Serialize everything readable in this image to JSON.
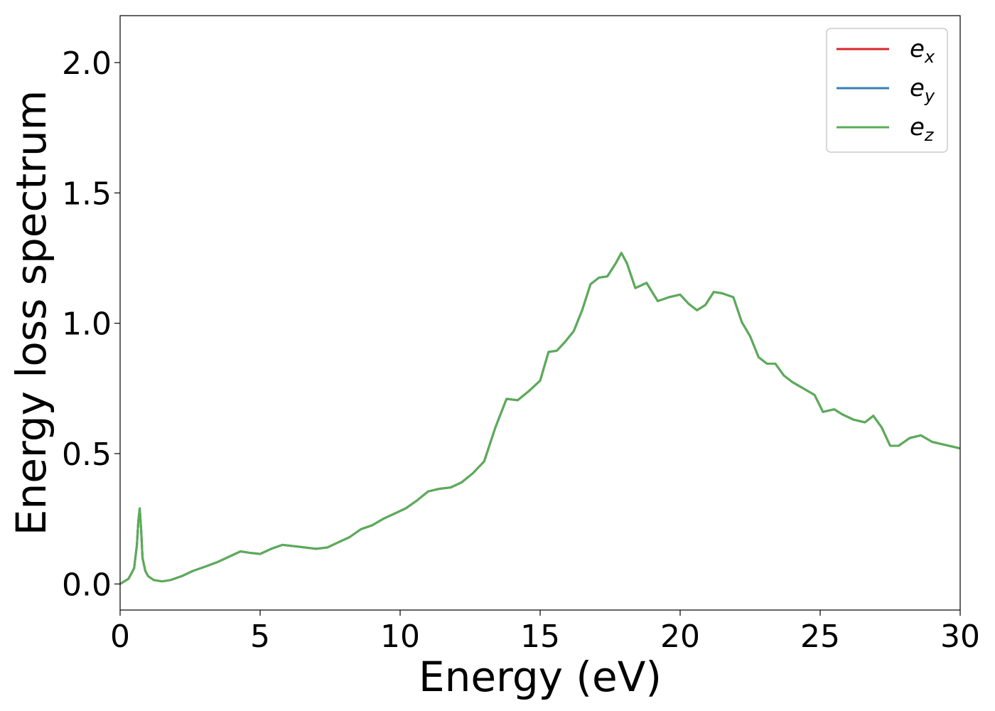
{
  "chart_data": {
    "type": "line",
    "xlabel": "Energy (eV)",
    "ylabel": "Energy loss spectrum",
    "xlim": [
      0,
      30
    ],
    "ylim": [
      -0.1,
      2.18
    ],
    "xticks": [
      0,
      5,
      10,
      15,
      20,
      25,
      30
    ],
    "xtick_labels": [
      "0",
      "5",
      "10",
      "15",
      "20",
      "25",
      "30"
    ],
    "yticks": [
      0.0,
      0.5,
      1.0,
      1.5,
      2.0
    ],
    "ytick_labels": [
      "0.0",
      "0.5",
      "1.0",
      "1.5",
      "2.0"
    ],
    "grid": false,
    "legend_position": "top-right",
    "series": [
      {
        "name": "e",
        "subscript": "x",
        "color": "#d62728"
      },
      {
        "name": "e",
        "subscript": "y",
        "color": "#3a7fb5"
      },
      {
        "name": "e",
        "subscript": "z",
        "color": "#5aad57"
      }
    ],
    "x": [
      0,
      0.3,
      0.5,
      0.6,
      0.65,
      0.7,
      0.75,
      0.8,
      0.9,
      1.0,
      1.2,
      1.5,
      1.8,
      2.2,
      2.6,
      3.0,
      3.5,
      4.0,
      4.3,
      4.6,
      5.0,
      5.4,
      5.8,
      6.2,
      6.6,
      7.0,
      7.4,
      7.8,
      8.2,
      8.6,
      9.0,
      9.4,
      9.8,
      10.2,
      10.6,
      11.0,
      11.4,
      11.8,
      12.2,
      12.6,
      13.0,
      13.4,
      13.8,
      14.2,
      14.6,
      15.0,
      15.3,
      15.6,
      15.9,
      16.2,
      16.5,
      16.8,
      17.1,
      17.4,
      17.7,
      17.9,
      18.1,
      18.4,
      18.8,
      19.2,
      19.6,
      20.0,
      20.3,
      20.6,
      20.9,
      21.2,
      21.5,
      21.9,
      22.2,
      22.5,
      22.8,
      23.1,
      23.4,
      23.7,
      24.0,
      24.4,
      24.8,
      25.1,
      25.5,
      25.8,
      26.2,
      26.6,
      26.9,
      27.2,
      27.5,
      27.8,
      28.2,
      28.6,
      29.0,
      29.4,
      29.8,
      30.0
    ],
    "y": [
      0.0,
      0.02,
      0.06,
      0.15,
      0.24,
      0.29,
      0.21,
      0.1,
      0.05,
      0.03,
      0.015,
      0.01,
      0.015,
      0.03,
      0.05,
      0.065,
      0.085,
      0.11,
      0.125,
      0.12,
      0.115,
      0.135,
      0.15,
      0.145,
      0.14,
      0.135,
      0.14,
      0.16,
      0.18,
      0.21,
      0.225,
      0.25,
      0.27,
      0.29,
      0.32,
      0.355,
      0.365,
      0.37,
      0.39,
      0.425,
      0.47,
      0.6,
      0.71,
      0.705,
      0.74,
      0.78,
      0.89,
      0.895,
      0.93,
      0.97,
      1.05,
      1.15,
      1.175,
      1.18,
      1.23,
      1.27,
      1.23,
      1.135,
      1.155,
      1.085,
      1.1,
      1.11,
      1.075,
      1.05,
      1.07,
      1.12,
      1.115,
      1.1,
      1.005,
      0.95,
      0.87,
      0.845,
      0.845,
      0.8,
      0.775,
      0.75,
      0.725,
      0.66,
      0.67,
      0.65,
      0.63,
      0.62,
      0.645,
      0.6,
      0.53,
      0.53,
      0.56,
      0.57,
      0.545,
      0.535,
      0.525,
      0.52
    ]
  }
}
